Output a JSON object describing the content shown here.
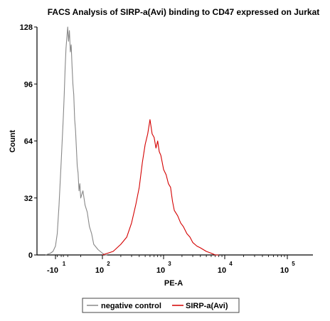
{
  "chart_data": {
    "type": "line",
    "title": "FACS Analysis of SIRP-a(Avi) binding to CD47 expressed on Jurkat",
    "xlabel": "PE-A",
    "ylabel": "Count",
    "ylim": [
      0,
      128
    ],
    "yticks": [
      "0",
      "32",
      "64",
      "96",
      "128"
    ],
    "xticks": [
      {
        "base": "-10",
        "exp": "1"
      },
      {
        "base": "10",
        "exp": "2"
      },
      {
        "base": "10",
        "exp": "3"
      },
      {
        "base": "10",
        "exp": "4"
      },
      {
        "base": "10",
        "exp": "5"
      }
    ],
    "x_scale": "biexponential",
    "grid": false,
    "legend_position": "bottom",
    "series": [
      {
        "name": "negative control",
        "color": "#888888",
        "x": [
          -30,
          -20,
          -15,
          -10,
          -5,
          0,
          5,
          10,
          12,
          14,
          16,
          18,
          20,
          22,
          24,
          26,
          28,
          30,
          32,
          34,
          36,
          38,
          40,
          42,
          44,
          46,
          48,
          50,
          55,
          60,
          65,
          70,
          75,
          80,
          90,
          100,
          110,
          120
        ],
        "y": [
          0,
          1,
          2,
          5,
          12,
          28,
          52,
          78,
          90,
          104,
          116,
          122,
          128,
          120,
          126,
          114,
          118,
          106,
          96,
          90,
          76,
          70,
          60,
          50,
          46,
          36,
          40,
          32,
          36,
          28,
          24,
          16,
          12,
          6,
          3,
          1,
          0,
          0
        ]
      },
      {
        "name": "SIRP-a(Avi)",
        "color": "#d40000",
        "x": [
          100,
          150,
          200,
          250,
          300,
          350,
          400,
          450,
          500,
          550,
          600,
          650,
          700,
          750,
          800,
          850,
          900,
          950,
          1000,
          1100,
          1200,
          1300,
          1400,
          1500,
          1700,
          1900,
          2100,
          2400,
          2700,
          3000,
          3500,
          4000,
          5000,
          6000,
          7000,
          8000
        ],
        "y": [
          0,
          2,
          6,
          10,
          18,
          28,
          38,
          52,
          62,
          68,
          76,
          68,
          66,
          60,
          64,
          58,
          56,
          52,
          48,
          45,
          40,
          38,
          30,
          25,
          22,
          18,
          16,
          12,
          10,
          7,
          5,
          4,
          2,
          1,
          0,
          0
        ]
      }
    ]
  }
}
